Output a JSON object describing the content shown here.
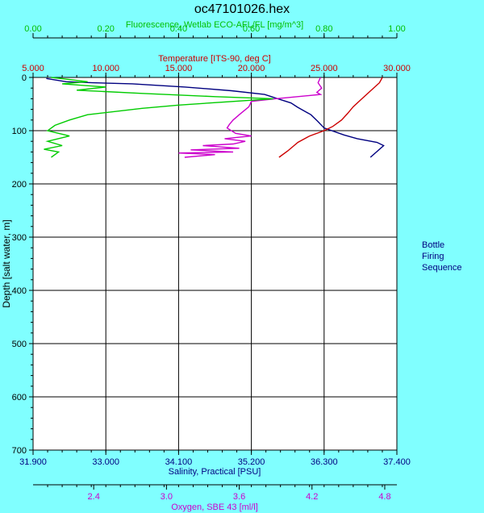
{
  "chart_data": {
    "type": "line",
    "title": "oc47101026.hex",
    "y_axis": {
      "label": "Depth [salt water, m]",
      "range": [
        0,
        700
      ],
      "ticks": [
        "0",
        "100",
        "200",
        "300",
        "400",
        "500",
        "600",
        "700"
      ],
      "inverted": true
    },
    "x_axes": [
      {
        "id": "fluorescence",
        "label": "Fluorescence, Wetlab ECO-AFL/FL [mg/m^3]",
        "position": "top-outer",
        "color": "#00c000",
        "range": [
          0,
          1
        ],
        "ticks": [
          "0.00",
          "0.20",
          "0.40",
          "0.60",
          "0.80",
          "1.00"
        ]
      },
      {
        "id": "temperature",
        "label": "Temperature [ITS-90, deg C]",
        "position": "top-inner",
        "color": "#cc0000",
        "range": [
          5,
          30
        ],
        "ticks": [
          "5.000",
          "10.000",
          "15.000",
          "20.000",
          "25.000",
          "30.000"
        ]
      },
      {
        "id": "salinity",
        "label": "Salinity, Practical [PSU]",
        "position": "bottom-inner",
        "color": "#000080",
        "range": [
          31.9,
          37.4
        ],
        "ticks": [
          "31.900",
          "33.000",
          "34.100",
          "35.200",
          "36.300",
          "37.400"
        ]
      },
      {
        "id": "oxygen",
        "label": "Oxygen, SBE 43 [ml/l]",
        "position": "bottom-outer",
        "color": "#cc00cc",
        "range": [
          1.9,
          4.9
        ],
        "ticks": [
          "2.4",
          "3.0",
          "3.6",
          "4.2",
          "4.8"
        ],
        "tick_values": [
          2.4,
          3.0,
          3.6,
          4.2,
          4.8
        ]
      }
    ],
    "grid": true,
    "series": [
      {
        "axis": "salinity",
        "color": "#000080",
        "x": [
          32.1,
          32.4,
          32.8,
          33.4,
          34.2,
          34.9,
          35.4,
          35.6,
          35.8,
          35.9,
          36.1,
          36.2,
          36.3,
          36.6,
          36.8,
          37.1,
          37.2,
          37.0
        ],
        "y": [
          2,
          8,
          10,
          12,
          18,
          25,
          32,
          40,
          48,
          56,
          70,
          82,
          95,
          108,
          115,
          122,
          128,
          150
        ]
      },
      {
        "axis": "temperature",
        "color": "#cc0000",
        "x": [
          29.0,
          28.8,
          28.2,
          27.6,
          27.0,
          26.6,
          26.2,
          25.6,
          25.0,
          24.0,
          23.2,
          22.5,
          21.9
        ],
        "y": [
          0,
          10,
          25,
          40,
          55,
          68,
          80,
          92,
          100,
          110,
          122,
          138,
          150
        ]
      },
      {
        "axis": "oxygen",
        "color": "#cc00cc",
        "x": [
          4.27,
          4.25,
          4.28,
          4.24,
          4.27,
          3.9,
          3.7,
          3.68,
          3.6,
          3.55,
          3.52,
          3.5,
          3.57,
          3.7,
          3.48,
          3.65,
          3.55,
          3.3,
          3.6,
          3.2,
          3.55,
          3.1,
          3.4,
          3.15
        ],
        "y": [
          0,
          10,
          20,
          28,
          32,
          40,
          45,
          55,
          70,
          80,
          88,
          95,
          105,
          110,
          115,
          120,
          125,
          128,
          133,
          136,
          140,
          142,
          145,
          150
        ]
      },
      {
        "axis": "fluorescence",
        "color": "#00cc00",
        "x": [
          0.05,
          0.1,
          0.15,
          0.08,
          0.2,
          0.12,
          0.3,
          0.5,
          0.66,
          0.4,
          0.3,
          0.15,
          0.1,
          0.06,
          0.04,
          0.1,
          0.04,
          0.08,
          0.03,
          0.07,
          0.05
        ],
        "y": [
          0,
          4,
          8,
          12,
          18,
          24,
          30,
          36,
          40,
          52,
          58,
          70,
          80,
          90,
          100,
          110,
          120,
          128,
          135,
          140,
          150
        ]
      }
    ],
    "side_legend": [
      "Bottle",
      "Firing",
      "Sequence"
    ]
  }
}
